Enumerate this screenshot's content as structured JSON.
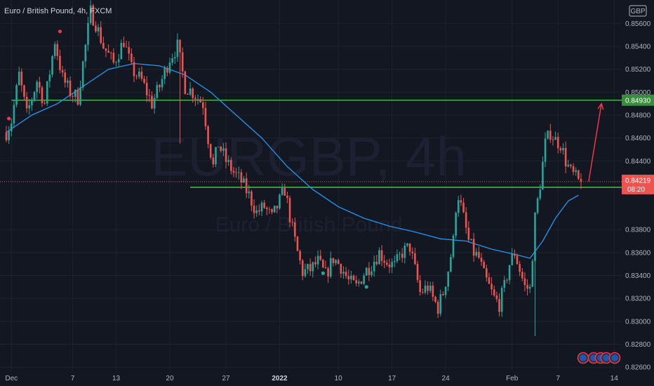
{
  "header": {
    "symbol_title": "Euro / British Pound, 4h, FXCM",
    "currency_badge": "GBP"
  },
  "watermark": {
    "symbol": "EURGBP, 4h",
    "name": "Euro / British Pound"
  },
  "chart_data": {
    "type": "candlestick",
    "symbol": "EURGBP",
    "timeframe": "4h",
    "source": "FXCM",
    "y_range": [
      0.8257,
      0.8578
    ],
    "y_ticks": [
      {
        "value": 0.856,
        "label": "0.85600"
      },
      {
        "value": 0.854,
        "label": "0.85400"
      },
      {
        "value": 0.852,
        "label": "0.85200"
      },
      {
        "value": 0.85,
        "label": "0.85000"
      },
      {
        "value": 0.848,
        "label": "0.84800"
      },
      {
        "value": 0.846,
        "label": "0.84600"
      },
      {
        "value": 0.844,
        "label": "0.84400"
      },
      {
        "value": 0.838,
        "label": "0.83800"
      },
      {
        "value": 0.836,
        "label": "0.83600"
      },
      {
        "value": 0.834,
        "label": "0.83400"
      },
      {
        "value": 0.832,
        "label": "0.83200"
      },
      {
        "value": 0.83,
        "label": "0.83000"
      },
      {
        "value": 0.828,
        "label": "0.82800"
      },
      {
        "value": 0.826,
        "label": "0.82600"
      }
    ],
    "x_ticks": [
      {
        "index": 2,
        "label": "Dec",
        "bold": false
      },
      {
        "index": 26,
        "label": "7",
        "bold": false
      },
      {
        "index": 43,
        "label": "13",
        "bold": false
      },
      {
        "index": 64,
        "label": "20",
        "bold": false
      },
      {
        "index": 86,
        "label": "27",
        "bold": false
      },
      {
        "index": 107,
        "label": "2022",
        "bold": true
      },
      {
        "index": 130,
        "label": "10",
        "bold": false
      },
      {
        "index": 151,
        "label": "17",
        "bold": false
      },
      {
        "index": 172,
        "label": "24",
        "bold": false
      },
      {
        "index": 198,
        "label": "Feb",
        "bold": false
      },
      {
        "index": 216,
        "label": "7",
        "bold": false
      },
      {
        "index": 238,
        "label": "14",
        "bold": false
      }
    ],
    "anchors": [
      [
        0,
        0.8465
      ],
      [
        2,
        0.8475
      ],
      [
        5,
        0.8515
      ],
      [
        8,
        0.848
      ],
      [
        12,
        0.851
      ],
      [
        15,
        0.849
      ],
      [
        19,
        0.8545
      ],
      [
        22,
        0.8512
      ],
      [
        25,
        0.85
      ],
      [
        28,
        0.8495
      ],
      [
        31,
        0.854
      ],
      [
        33,
        0.857
      ],
      [
        35,
        0.856
      ],
      [
        38,
        0.854
      ],
      [
        42,
        0.8525
      ],
      [
        46,
        0.8545
      ],
      [
        49,
        0.852
      ],
      [
        53,
        0.851
      ],
      [
        57,
        0.849
      ],
      [
        60,
        0.8505
      ],
      [
        64,
        0.853
      ],
      [
        67,
        0.854
      ],
      [
        70,
        0.8505
      ],
      [
        73,
        0.85
      ],
      [
        75,
        0.8495
      ],
      [
        77,
        0.849
      ],
      [
        79,
        0.846
      ],
      [
        81,
        0.8435
      ],
      [
        83,
        0.8455
      ],
      [
        86,
        0.844
      ],
      [
        89,
        0.843
      ],
      [
        92,
        0.8422
      ],
      [
        95,
        0.841
      ],
      [
        98,
        0.8395
      ],
      [
        101,
        0.84
      ],
      [
        104,
        0.839
      ],
      [
        107,
        0.8405
      ],
      [
        109,
        0.8415
      ],
      [
        112,
        0.838
      ],
      [
        114,
        0.836
      ],
      [
        116,
        0.8343
      ],
      [
        119,
        0.8345
      ],
      [
        122,
        0.8352
      ],
      [
        125,
        0.834
      ],
      [
        128,
        0.8355
      ],
      [
        131,
        0.8348
      ],
      [
        134,
        0.8335
      ],
      [
        137,
        0.833
      ],
      [
        140,
        0.8342
      ],
      [
        143,
        0.835
      ],
      [
        146,
        0.836
      ],
      [
        149,
        0.8352
      ],
      [
        152,
        0.8348
      ],
      [
        155,
        0.836
      ],
      [
        158,
        0.8365
      ],
      [
        160,
        0.8345
      ],
      [
        162,
        0.8325
      ],
      [
        165,
        0.833
      ],
      [
        167,
        0.832
      ],
      [
        169,
        0.8312
      ],
      [
        171,
        0.8325
      ],
      [
        173,
        0.8345
      ],
      [
        175,
        0.837
      ],
      [
        176,
        0.84
      ],
      [
        177,
        0.841
      ],
      [
        179,
        0.839
      ],
      [
        181,
        0.837
      ],
      [
        183,
        0.836
      ],
      [
        185,
        0.8355
      ],
      [
        187,
        0.834
      ],
      [
        189,
        0.833
      ],
      [
        191,
        0.832
      ],
      [
        193,
        0.8315
      ],
      [
        195,
        0.833
      ],
      [
        197,
        0.835
      ],
      [
        199,
        0.836
      ],
      [
        201,
        0.8345
      ],
      [
        203,
        0.833
      ],
      [
        205,
        0.8328
      ],
      [
        207,
        0.839
      ],
      [
        209,
        0.842
      ],
      [
        211,
        0.8455
      ],
      [
        213,
        0.8465
      ],
      [
        215,
        0.8458
      ],
      [
        217,
        0.8455
      ],
      [
        219,
        0.844
      ],
      [
        221,
        0.843
      ],
      [
        223,
        0.8425
      ],
      [
        224,
        0.8422
      ],
      [
        225,
        0.8422
      ]
    ],
    "spike_lows": [
      [
        68,
        0.8455
      ],
      [
        207,
        0.8287
      ]
    ],
    "moving_average": [
      [
        0,
        0.8465
      ],
      [
        10,
        0.848
      ],
      [
        20,
        0.849
      ],
      [
        30,
        0.8505
      ],
      [
        40,
        0.852
      ],
      [
        50,
        0.8525
      ],
      [
        60,
        0.8523
      ],
      [
        70,
        0.8515
      ],
      [
        80,
        0.85
      ],
      [
        90,
        0.848
      ],
      [
        100,
        0.846
      ],
      [
        110,
        0.8435
      ],
      [
        120,
        0.8415
      ],
      [
        130,
        0.84
      ],
      [
        140,
        0.839
      ],
      [
        150,
        0.8383
      ],
      [
        160,
        0.8378
      ],
      [
        170,
        0.8372
      ],
      [
        180,
        0.837
      ],
      [
        190,
        0.8363
      ],
      [
        200,
        0.8358
      ],
      [
        205,
        0.8355
      ],
      [
        210,
        0.837
      ],
      [
        215,
        0.839
      ],
      [
        220,
        0.8405
      ],
      [
        224,
        0.841
      ]
    ],
    "horizontal_levels": [
      {
        "value": 0.8493,
        "label": "0.84930",
        "from_index": 2,
        "color": "#4caf50"
      },
      {
        "value": 0.8417,
        "label": "0.84170",
        "from_index": 72,
        "color": "#4caf50"
      }
    ],
    "current_price": {
      "value": 0.84219,
      "label": "0.84219",
      "countdown": "08:20",
      "color": "#ef5350"
    },
    "arrow": {
      "from": [
        228,
        0.8422
      ],
      "to": [
        233,
        0.849
      ],
      "color": "#f23645"
    },
    "markers": [
      {
        "index": 21,
        "value": 0.8553,
        "color": "#f23645"
      },
      {
        "index": 1,
        "value": 0.8477,
        "color": "#f23645"
      },
      {
        "index": 124,
        "value": 0.8342,
        "color": "#26a69a"
      },
      {
        "index": 141,
        "value": 0.833,
        "color": "#26a69a"
      }
    ],
    "colors": {
      "up": "#26a69a",
      "down": "#ef5350",
      "ma": "#2196f3",
      "background": "#131722",
      "grid": "#1e222d",
      "text": "#b2b5be"
    }
  }
}
